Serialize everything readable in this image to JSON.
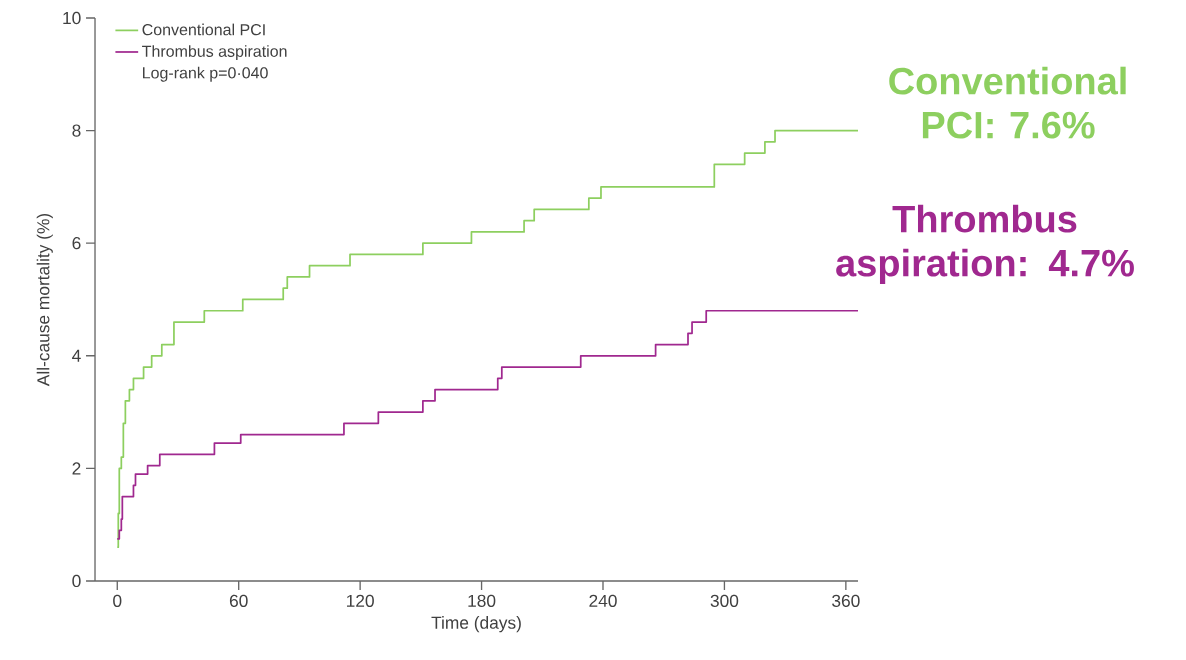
{
  "chart_data": {
    "type": "step",
    "xlabel": "Time (days)",
    "ylabel": "All-cause mortality (%)",
    "xlim": [
      -11,
      366
    ],
    "ylim": [
      0,
      10
    ],
    "xticks": [
      0,
      60,
      120,
      180,
      240,
      300,
      360
    ],
    "yticks": [
      0,
      2,
      4,
      6,
      8,
      10
    ],
    "grid": false,
    "legend": "top left",
    "annotations": [
      "Log-rank p=0·040",
      "Conventional PCI: 7.6%",
      "Thrombus aspiration: 4.7%"
    ],
    "series": [
      {
        "name": "Conventional PCI",
        "color": "#8dcf5f",
        "x": [
          0,
          0.5,
          1,
          2,
          3,
          4,
          6,
          8,
          13,
          17,
          22,
          28,
          43,
          62,
          82,
          84,
          95,
          115,
          151,
          175,
          201,
          206,
          233,
          239,
          295,
          310,
          320,
          325,
          366
        ],
        "values": [
          0.6,
          1.2,
          2.0,
          2.2,
          2.8,
          3.2,
          3.4,
          3.6,
          3.8,
          4.0,
          4.2,
          4.6,
          4.8,
          5.0,
          5.2,
          5.4,
          5.6,
          5.8,
          6.0,
          6.2,
          6.4,
          6.6,
          6.8,
          7.0,
          7.4,
          7.6,
          7.8,
          8.0,
          8.0
        ]
      },
      {
        "name": "Thrombus aspiration",
        "color": "#a0288f",
        "x": [
          0,
          1,
          2,
          2.5,
          8,
          9,
          15,
          21,
          48,
          61,
          112,
          129,
          151,
          157,
          188,
          190,
          229,
          266,
          282,
          284,
          291,
          366
        ],
        "values": [
          0.75,
          0.9,
          1.1,
          1.5,
          1.7,
          1.9,
          2.05,
          2.25,
          2.45,
          2.6,
          2.8,
          3.0,
          3.2,
          3.4,
          3.6,
          3.8,
          4.0,
          4.2,
          4.4,
          4.6,
          4.8,
          4.8
        ]
      }
    ]
  }
}
